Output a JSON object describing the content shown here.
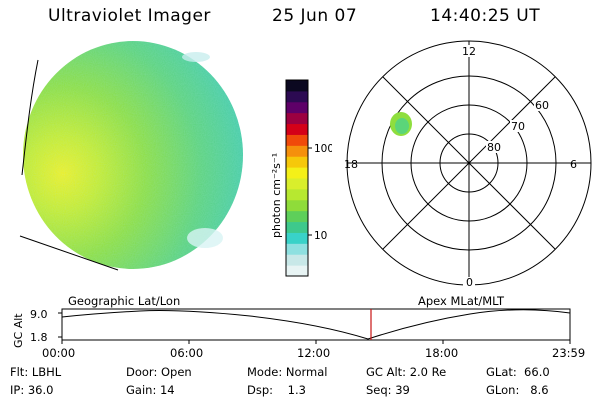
{
  "header": {
    "instrument": "Ultraviolet Imager",
    "date": "25 Jun 07",
    "time": "14:40:25 UT"
  },
  "colorbar": {
    "unit_label": "photon cm⁻²s⁻¹",
    "ticks": [
      "100",
      "10"
    ],
    "colors": [
      "#e8f4f4",
      "#c8e8e8",
      "#8ee0e0",
      "#39d2c8",
      "#3ec98c",
      "#5ecf5a",
      "#8fdc3a",
      "#b7e830",
      "#d9ee2c",
      "#f4f018",
      "#f6c80a",
      "#f5900c",
      "#f04a0a",
      "#d40018",
      "#9c0040",
      "#5e0068",
      "#2c0a52",
      "#0b0820"
    ]
  },
  "polar": {
    "mlt_labels": {
      "top": "12",
      "bottom": "0",
      "left": "18",
      "right": "6"
    },
    "lat_labels": [
      "60",
      "70",
      "80"
    ]
  },
  "timeline": {
    "left_label": "Geographic Lat/Lon",
    "right_label": "Apex MLat/MLT",
    "axis_label": "GC Alt",
    "y_ticks": [
      "9.0",
      "1.8"
    ],
    "x_ticks": [
      "00:00",
      "06:00",
      "12:00",
      "18:00",
      "23:59"
    ]
  },
  "status": {
    "filter": "Flt: LBHL",
    "ip": "IP: 36.0",
    "door": "Door: Open",
    "gain": "Gain: 14",
    "mode": "Mode: Normal",
    "dsp": "Dsp:    1.3",
    "gc_alt": "GC Alt: 2.0 Re",
    "seq": "Seq: 39",
    "glat": "GLat:  66.0",
    "glon": "GLon:   8.6"
  }
}
